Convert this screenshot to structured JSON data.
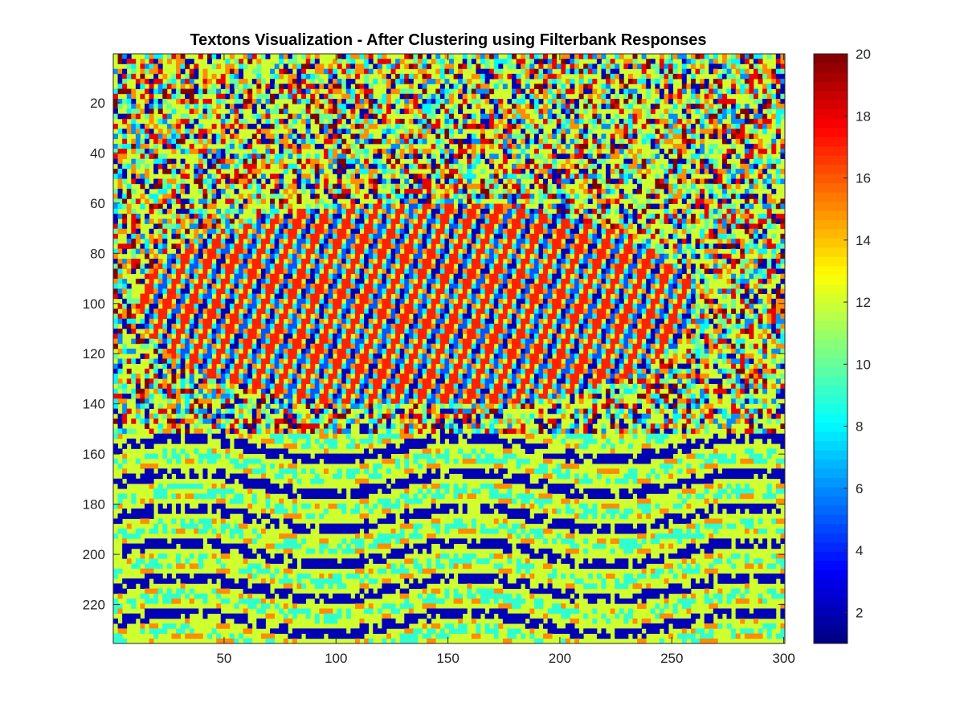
{
  "chart_data": {
    "type": "heatmap",
    "title": "Textons Visualization - After Clustering using Filterbank Responses",
    "xlabel": "",
    "ylabel": "",
    "xlim": [
      0.5,
      300.5
    ],
    "ylim": [
      0.5,
      235.5
    ],
    "y_reversed": true,
    "x_ticks": [
      50,
      100,
      150,
      200,
      250,
      300
    ],
    "y_ticks": [
      20,
      40,
      60,
      80,
      100,
      120,
      140,
      160,
      180,
      200,
      220
    ],
    "colormap": "jet",
    "color_range": [
      1,
      20
    ],
    "colorbar_ticks": [
      2,
      4,
      6,
      8,
      10,
      12,
      14,
      16,
      18,
      20
    ],
    "grid": false,
    "content": "texton cluster label map (values 1–20) of a zebra standing in grass"
  }
}
